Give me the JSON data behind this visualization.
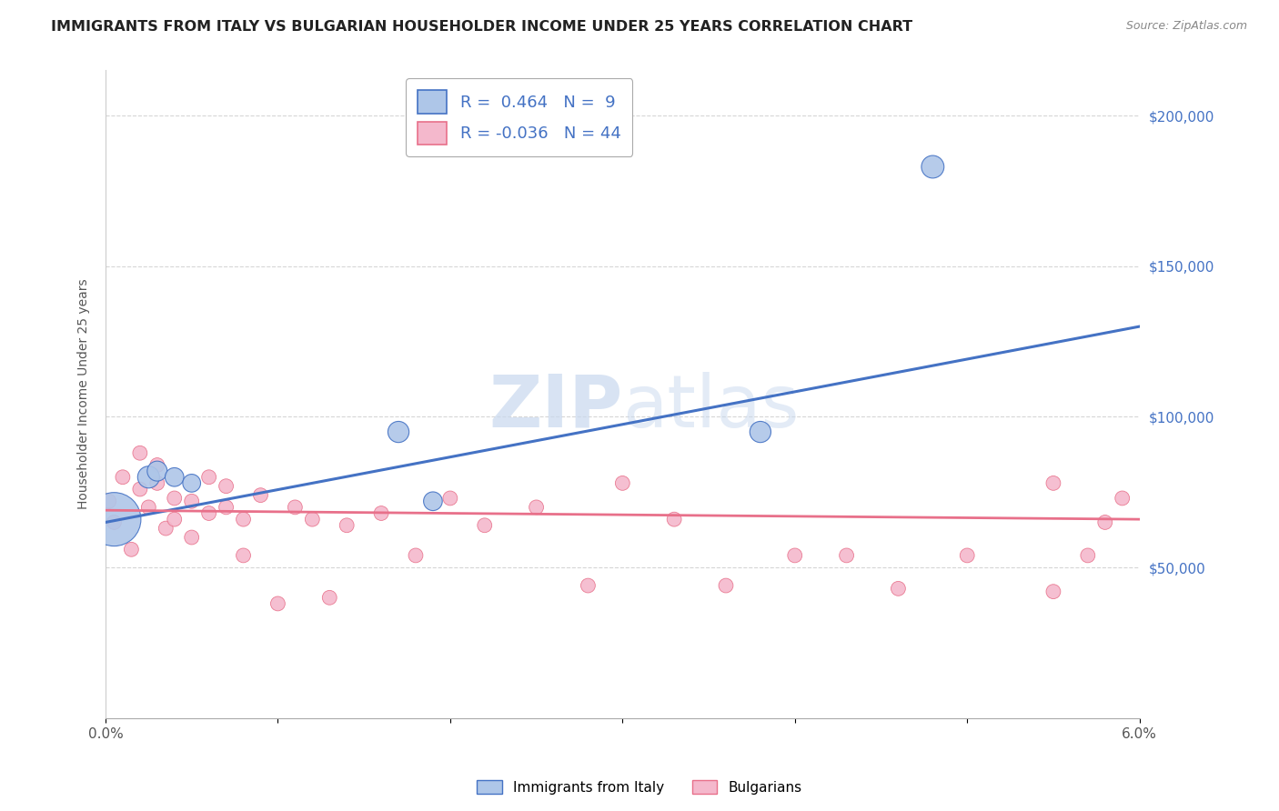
{
  "title": "IMMIGRANTS FROM ITALY VS BULGARIAN HOUSEHOLDER INCOME UNDER 25 YEARS CORRELATION CHART",
  "source": "Source: ZipAtlas.com",
  "ylabel": "Householder Income Under 25 years",
  "legend_bottom": [
    "Immigrants from Italy",
    "Bulgarians"
  ],
  "italy_R": 0.464,
  "italy_N": 9,
  "bulgaria_R": -0.036,
  "bulgaria_N": 44,
  "italy_color": "#aec6e8",
  "italy_line_color": "#4472c4",
  "bulgaria_color": "#f4b8cc",
  "bulgaria_line_color": "#e8708a",
  "background_color": "#ffffff",
  "grid_color": "#cccccc",
  "xlim": [
    0.0,
    0.06
  ],
  "ylim": [
    0,
    215000
  ],
  "ytick_pos": [
    50000,
    100000,
    150000,
    200000
  ],
  "ytick_labels": [
    "$50,000",
    "$100,000",
    "$150,000",
    "$200,000"
  ],
  "italy_points_x": [
    0.0005,
    0.0025,
    0.003,
    0.004,
    0.005,
    0.017,
    0.019,
    0.038,
    0.048
  ],
  "italy_points_y": [
    66000,
    80000,
    82000,
    80000,
    78000,
    95000,
    72000,
    95000,
    183000
  ],
  "italy_sizes": [
    1800,
    300,
    250,
    220,
    200,
    280,
    220,
    280,
    320
  ],
  "bulgaria_points_x": [
    0.0002,
    0.0005,
    0.001,
    0.0015,
    0.002,
    0.002,
    0.0025,
    0.003,
    0.003,
    0.0035,
    0.004,
    0.004,
    0.005,
    0.005,
    0.006,
    0.006,
    0.007,
    0.007,
    0.008,
    0.008,
    0.009,
    0.01,
    0.011,
    0.012,
    0.013,
    0.014,
    0.016,
    0.018,
    0.02,
    0.022,
    0.025,
    0.028,
    0.03,
    0.033,
    0.036,
    0.04,
    0.043,
    0.046,
    0.05,
    0.055,
    0.055,
    0.057,
    0.058,
    0.059
  ],
  "bulgaria_points_y": [
    72000,
    65000,
    80000,
    56000,
    88000,
    76000,
    70000,
    84000,
    78000,
    63000,
    73000,
    66000,
    72000,
    60000,
    80000,
    68000,
    77000,
    70000,
    66000,
    54000,
    74000,
    38000,
    70000,
    66000,
    40000,
    64000,
    68000,
    54000,
    73000,
    64000,
    70000,
    44000,
    78000,
    66000,
    44000,
    54000,
    54000,
    43000,
    54000,
    42000,
    78000,
    54000,
    65000,
    73000
  ],
  "bulgaria_sizes": [
    130,
    130,
    130,
    130,
    130,
    130,
    130,
    130,
    130,
    130,
    130,
    130,
    130,
    130,
    130,
    130,
    130,
    130,
    130,
    130,
    130,
    130,
    130,
    130,
    130,
    130,
    130,
    130,
    130,
    130,
    130,
    130,
    130,
    130,
    130,
    130,
    130,
    130,
    130,
    130,
    130,
    130,
    130,
    130
  ],
  "italy_trend": [
    65000,
    130000
  ],
  "bulgaria_trend": [
    69000,
    66000
  ],
  "watermark_zip": "ZIP",
  "watermark_atlas": "atlas",
  "title_fontsize": 11.5,
  "label_fontsize": 10,
  "tick_fontsize": 11
}
